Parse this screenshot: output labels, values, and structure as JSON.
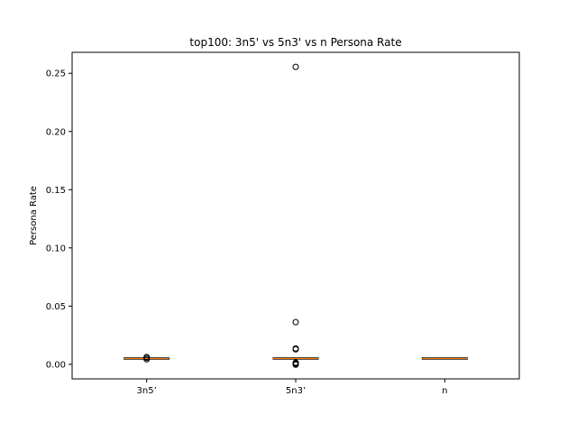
{
  "chart_data": {
    "type": "box",
    "title": "top100: 3n5' vs 5n3' vs n Persona Rate",
    "xlabel": "",
    "ylabel": "Persona Rate",
    "ylim": [
      -0.0125,
      0.268
    ],
    "yticks": [
      0.0,
      0.05,
      0.1,
      0.15,
      0.2,
      0.25
    ],
    "ytick_labels": [
      "0.00",
      "0.05",
      "0.10",
      "0.15",
      "0.20",
      "0.25"
    ],
    "grid": false,
    "categories": [
      "3n5’",
      "5n3’",
      "n"
    ],
    "boxes": [
      {
        "name": "3n5’",
        "q1": 0.0048,
        "median": 0.005,
        "q3": 0.0052,
        "whisker_low": 0.0048,
        "whisker_high": 0.0052,
        "outliers": [
          0.0055,
          0.0062,
          0.0043
        ]
      },
      {
        "name": "5n3’",
        "q1": 0.0048,
        "median": 0.005,
        "q3": 0.0052,
        "whisker_low": 0.0048,
        "whisker_high": 0.0052,
        "outliers": [
          0.2555,
          0.0362,
          0.0137,
          0.0129,
          0.0015,
          0.0008,
          0.0002,
          -0.0003
        ]
      },
      {
        "name": "n",
        "q1": 0.0049,
        "median": 0.005,
        "q3": 0.0051,
        "whisker_low": 0.0049,
        "whisker_high": 0.0051,
        "outliers": []
      }
    ],
    "colors": {
      "box": "#000000",
      "median": "#ff7f0e",
      "outlier": "#000000"
    }
  }
}
